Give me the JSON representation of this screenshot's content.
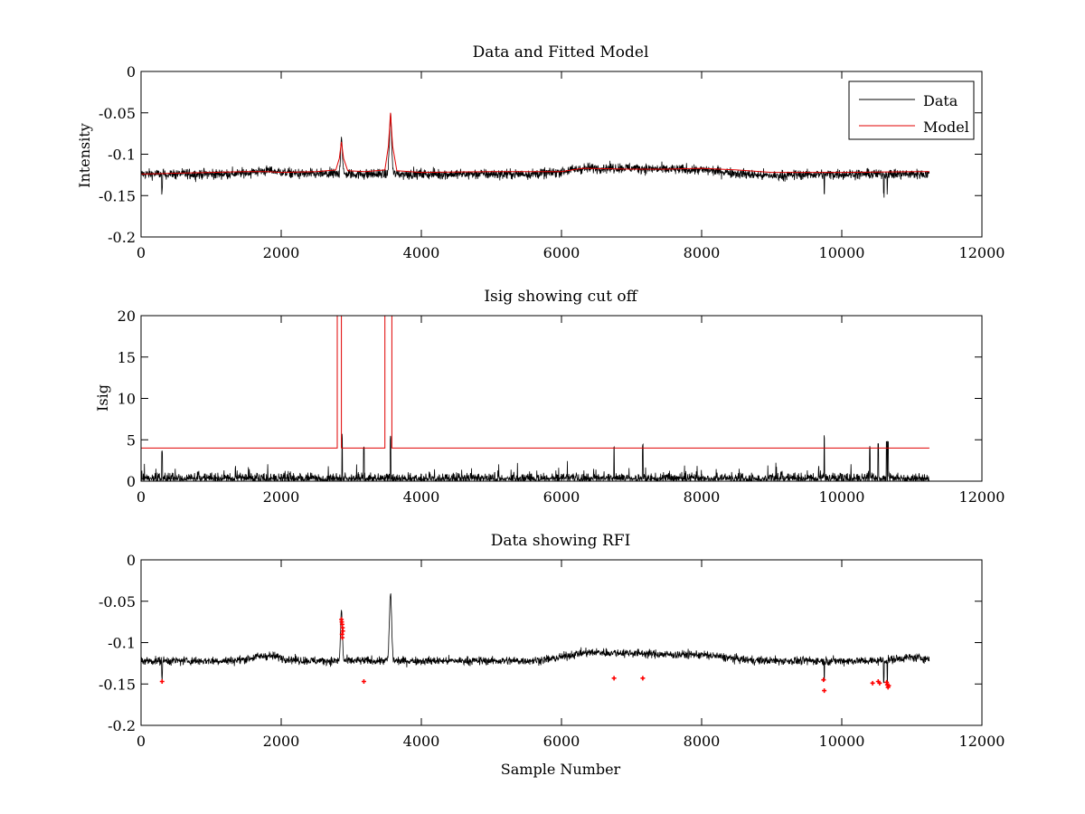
{
  "colors": {
    "data": "#000000",
    "model": "#e00000",
    "rfi": "#ff0000"
  },
  "chart_data": [
    {
      "id": "top",
      "type": "line",
      "title": "Data and Fitted Model",
      "xlabel": "",
      "ylabel": "Intensity",
      "xlim": [
        0,
        12000
      ],
      "ylim": [
        -0.2,
        0
      ],
      "xticks": [
        0,
        2000,
        4000,
        6000,
        8000,
        10000,
        12000
      ],
      "xtick_labels": [
        "0",
        "2000",
        "4000",
        "6000",
        "8000",
        "10000",
        "12000"
      ],
      "yticks": [
        -0.2,
        -0.15,
        -0.1,
        -0.05,
        0
      ],
      "ytick_labels": [
        "-0.2",
        "-0.15",
        "-0.1",
        "-0.05",
        "0"
      ],
      "legend": {
        "position": "top-right",
        "entries": [
          "Data",
          "Model"
        ]
      },
      "series": [
        {
          "name": "Data",
          "style": "noise-line",
          "baseline": -0.124,
          "noise": 0.006,
          "n": 11250,
          "bumps": [
            [
              1800,
              0.004,
              300
            ],
            [
              6300,
              0.004,
              400
            ],
            [
              7000,
              0.007,
              700
            ],
            [
              8000,
              0.004,
              500
            ],
            [
              9000,
              -0.002,
              400
            ]
          ],
          "peaks": [
            [
              2860,
              0.045,
              18
            ],
            [
              3560,
              0.07,
              22
            ]
          ],
          "dips": [
            [
              9750,
              -0.03
            ],
            [
              10600,
              -0.03
            ],
            [
              10650,
              -0.025
            ],
            [
              300,
              -0.025
            ]
          ]
        },
        {
          "name": "Model",
          "x": [
            0,
            500,
            1000,
            1500,
            1800,
            2000,
            2500,
            2780,
            2830,
            2860,
            2890,
            2950,
            3200,
            3480,
            3530,
            3560,
            3590,
            3650,
            4000,
            5000,
            6000,
            6300,
            7000,
            7500,
            8000,
            8500,
            9000,
            10000,
            11250
          ],
          "y": [
            -0.124,
            -0.123,
            -0.122,
            -0.121,
            -0.121,
            -0.122,
            -0.121,
            -0.119,
            -0.105,
            -0.085,
            -0.105,
            -0.12,
            -0.121,
            -0.119,
            -0.09,
            -0.05,
            -0.09,
            -0.12,
            -0.122,
            -0.121,
            -0.121,
            -0.117,
            -0.118,
            -0.118,
            -0.117,
            -0.119,
            -0.122,
            -0.122,
            -0.121
          ]
        }
      ]
    },
    {
      "id": "mid",
      "type": "line",
      "title": "Isig showing cut off",
      "xlabel": "",
      "ylabel": "Isig",
      "xlim": [
        0,
        12000
      ],
      "ylim": [
        0,
        20
      ],
      "xticks": [
        0,
        2000,
        4000,
        6000,
        8000,
        10000,
        12000
      ],
      "xtick_labels": [
        "0",
        "2000",
        "4000",
        "6000",
        "8000",
        "10000",
        "12000"
      ],
      "yticks": [
        0,
        5,
        10,
        15,
        20
      ],
      "ytick_labels": [
        "0",
        "5",
        "10",
        "15",
        "20"
      ],
      "series": [
        {
          "name": "Isig",
          "style": "abs-noise",
          "n": 11250,
          "scale": 0.9,
          "spikes": [
            [
              300,
              3.8
            ],
            [
              2870,
              5.9
            ],
            [
              3180,
              4.4
            ],
            [
              3560,
              5.8
            ],
            [
              6750,
              4.2
            ],
            [
              7160,
              4.7
            ],
            [
              9750,
              5.9
            ],
            [
              10400,
              4.3
            ],
            [
              10520,
              4.6
            ],
            [
              10640,
              5.2
            ],
            [
              10660,
              4.9
            ]
          ]
        },
        {
          "name": "Cut off",
          "x": [
            0,
            2800,
            2800,
            2860,
            2860,
            3480,
            3480,
            3580,
            3580,
            11250
          ],
          "y": [
            4,
            4,
            20.5,
            20.5,
            4,
            4,
            20.5,
            20.5,
            4,
            4
          ]
        }
      ]
    },
    {
      "id": "bot",
      "type": "scatter",
      "title": "Data showing RFI",
      "xlabel": "Sample Number",
      "ylabel": "",
      "xlim": [
        0,
        12000
      ],
      "ylim": [
        -0.2,
        0
      ],
      "xticks": [
        0,
        2000,
        4000,
        6000,
        8000,
        10000,
        12000
      ],
      "xtick_labels": [
        "0",
        "2000",
        "4000",
        "6000",
        "8000",
        "10000",
        "12000"
      ],
      "yticks": [
        -0.2,
        -0.15,
        -0.1,
        -0.05,
        0
      ],
      "ytick_labels": [
        "-0.2",
        "-0.15",
        "-0.1",
        "-0.05",
        "0"
      ],
      "series": [
        {
          "name": "Data",
          "style": "noise-line",
          "baseline": -0.122,
          "noise": 0.005,
          "n": 11250,
          "bumps": [
            [
              1800,
              0.006,
              300
            ],
            [
              6300,
              0.006,
              400
            ],
            [
              7000,
              0.009,
              700
            ],
            [
              8000,
              0.006,
              500
            ],
            [
              9000,
              0.0,
              400
            ],
            [
              11000,
              0.004,
              300
            ]
          ],
          "peaks": [
            [
              2860,
              0.06,
              18
            ],
            [
              3560,
              0.082,
              22
            ]
          ],
          "dips": [
            [
              300,
              -0.025
            ],
            [
              9750,
              -0.035
            ],
            [
              10600,
              -0.03
            ],
            [
              10650,
              -0.032
            ]
          ]
        },
        {
          "name": "RFI",
          "x": [
            300,
            2860,
            2865,
            2870,
            2875,
            2880,
            2868,
            2872,
            3180,
            6750,
            7160,
            9740,
            9750,
            10440,
            10520,
            10540,
            10640,
            10650,
            10660,
            10670
          ],
          "y": [
            -0.147,
            -0.072,
            -0.075,
            -0.078,
            -0.082,
            -0.086,
            -0.09,
            -0.094,
            -0.147,
            -0.143,
            -0.143,
            -0.145,
            -0.158,
            -0.149,
            -0.147,
            -0.149,
            -0.148,
            -0.151,
            -0.154,
            -0.152
          ]
        }
      ]
    }
  ]
}
